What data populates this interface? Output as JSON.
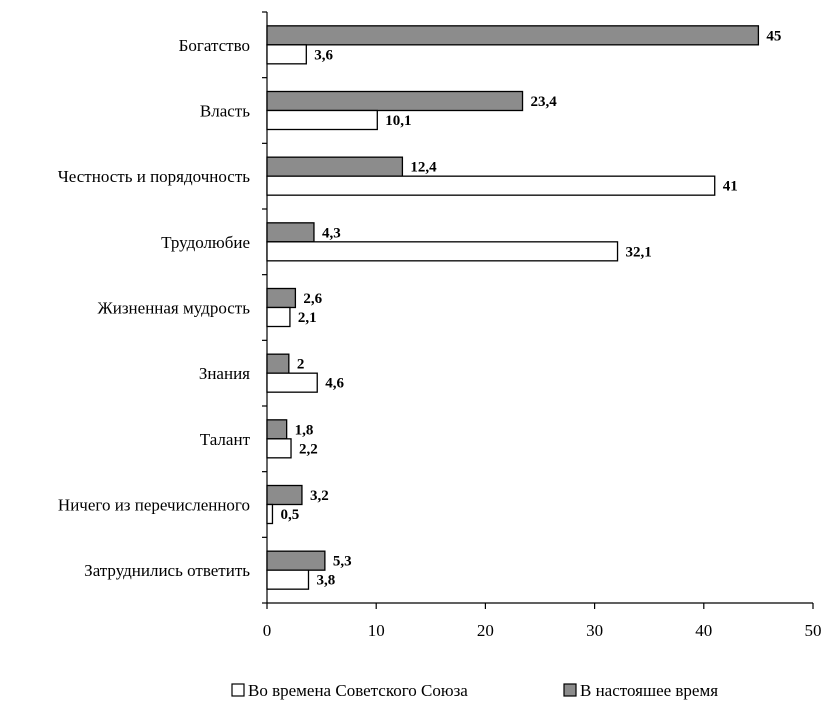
{
  "chart_data": {
    "type": "bar",
    "orientation": "horizontal",
    "categories": [
      "Богатство",
      "Власть",
      "Честность и порядочность",
      "Трудолюбие",
      "Жизненная мудрость",
      "Знания",
      "Талант",
      "Ничего из перечисленного",
      "Затруднились ответить"
    ],
    "series": [
      {
        "name": "В настояшее время",
        "color": "#8c8c8c",
        "values": [
          45,
          23.4,
          12.4,
          4.3,
          2.6,
          2,
          1.8,
          3.2,
          5.3
        ],
        "labels": [
          "45",
          "23,4",
          "12,4",
          "4,3",
          "2,6",
          "2",
          "1,8",
          "3,2",
          "5,3"
        ]
      },
      {
        "name": "Во времена Советского Союза",
        "color": "#ffffff",
        "values": [
          3.6,
          10.1,
          41,
          32.1,
          2.1,
          4.6,
          2.2,
          0.5,
          3.8
        ],
        "labels": [
          "3,6",
          "10,1",
          "41",
          "32,1",
          "2,1",
          "4,6",
          "2,2",
          "0,5",
          "3,8"
        ]
      }
    ],
    "xlim": [
      0,
      50
    ],
    "xticks": [
      "0",
      "10",
      "20",
      "30",
      "40",
      "50"
    ],
    "grid": false,
    "legend_position": "bottom",
    "legend_order": [
      "Во времена Советского Союза",
      "В настояшее время"
    ]
  }
}
